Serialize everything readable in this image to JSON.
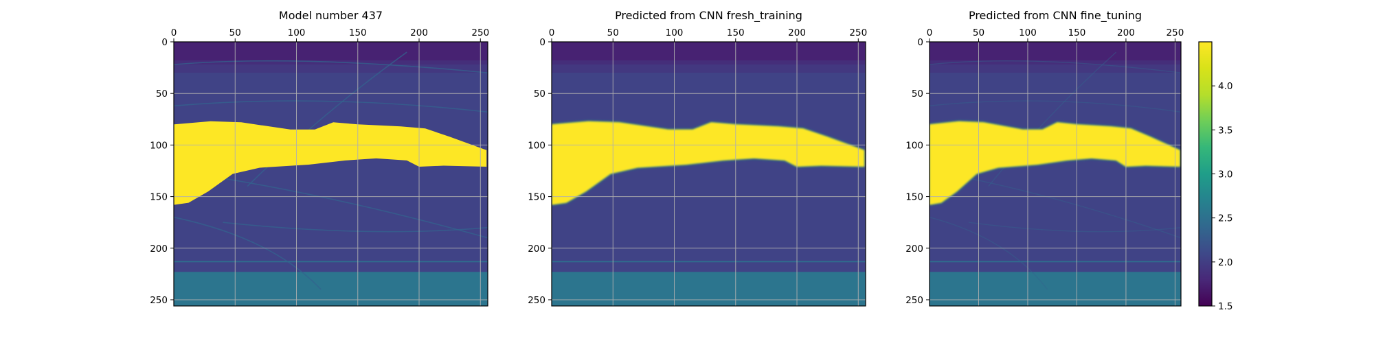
{
  "panels": [
    {
      "title": "Model number 437"
    },
    {
      "title": "Predicted from CNN fresh_training"
    },
    {
      "title": "Predicted from CNN fine_tuning"
    }
  ],
  "chart_data": {
    "type": "heatmap",
    "x_range": [
      0,
      256
    ],
    "y_range": [
      0,
      256
    ],
    "y_inverted": true,
    "x_ticks": [
      "0",
      "50",
      "100",
      "150",
      "200",
      "250"
    ],
    "y_ticks": [
      "0",
      "50",
      "100",
      "150",
      "200",
      "250"
    ],
    "x_axis_position": "top",
    "grid": true,
    "colormap": "viridis",
    "colorbar": {
      "range": [
        1.5,
        4.5
      ],
      "ticks": [
        "1.5",
        "2.0",
        "2.5",
        "3.0",
        "3.5",
        "4.0"
      ]
    },
    "layers": {
      "top_band_value": 1.75,
      "background_value": 2.05,
      "bottom_band_value": 2.55,
      "bottom_band_start_depth": 223,
      "thin_line_depth": 213,
      "body_value": 4.5
    },
    "body_outline": {
      "top": [
        [
          0,
          80
        ],
        [
          30,
          77
        ],
        [
          55,
          78
        ],
        [
          95,
          85
        ],
        [
          115,
          85
        ],
        [
          130,
          78
        ],
        [
          150,
          80
        ],
        [
          185,
          82
        ],
        [
          205,
          84
        ],
        [
          225,
          92
        ],
        [
          255,
          105
        ]
      ],
      "bottom": [
        [
          255,
          121
        ],
        [
          220,
          120
        ],
        [
          200,
          121
        ],
        [
          190,
          115
        ],
        [
          165,
          113
        ],
        [
          140,
          115
        ],
        [
          110,
          119
        ],
        [
          70,
          122
        ],
        [
          48,
          128
        ],
        [
          28,
          145
        ],
        [
          12,
          156
        ],
        [
          0,
          158
        ]
      ]
    }
  }
}
